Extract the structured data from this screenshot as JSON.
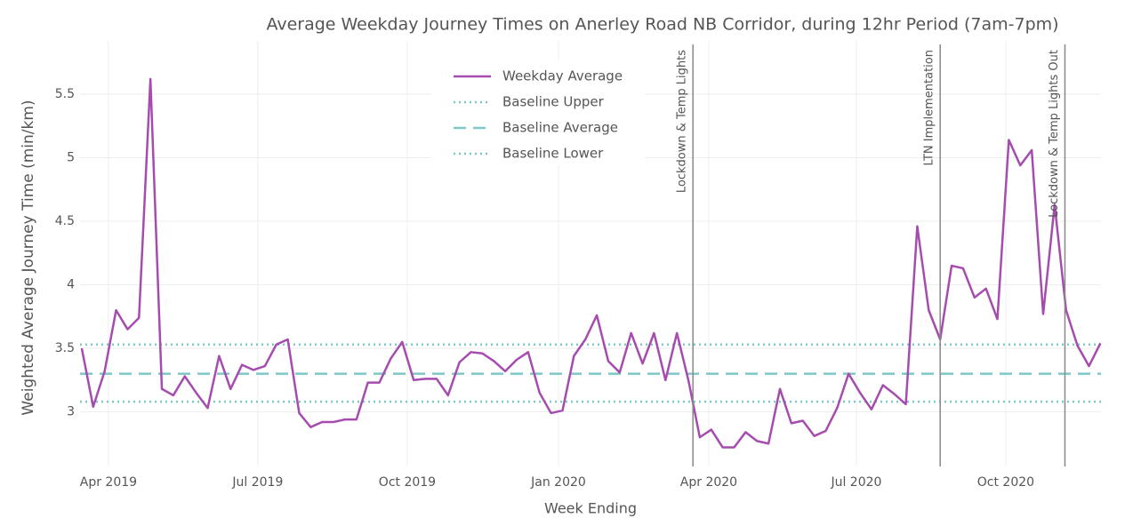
{
  "chart_data": {
    "type": "line",
    "title": "Average Weekday Journey Times on Anerley Road NB Corridor, during 12hr Period (7am-7pm)",
    "x_label": "Week Ending",
    "y_label": "Weighted Average Journey Time (min/km)",
    "series": [
      {
        "name": "Weekday Average",
        "color": "#a64caf",
        "values": [
          3.5,
          3.04,
          3.32,
          3.8,
          3.65,
          3.74,
          5.62,
          3.18,
          3.13,
          3.28,
          3.15,
          3.03,
          3.44,
          3.18,
          3.37,
          3.33,
          3.36,
          3.53,
          3.57,
          2.99,
          2.88,
          2.92,
          2.92,
          2.94,
          2.94,
          3.23,
          3.23,
          3.42,
          3.55,
          3.25,
          3.26,
          3.26,
          3.13,
          3.39,
          3.47,
          3.46,
          3.4,
          3.32,
          3.41,
          3.47,
          3.15,
          2.99,
          3.01,
          3.44,
          3.57,
          3.76,
          3.4,
          3.31,
          3.62,
          3.38,
          3.62,
          3.25,
          3.62,
          3.25,
          2.8,
          2.86,
          2.72,
          2.72,
          2.84,
          2.77,
          2.75,
          3.18,
          2.91,
          2.93,
          2.81,
          2.85,
          3.03,
          3.3,
          3.15,
          3.02,
          3.21,
          3.14,
          3.06,
          4.46,
          3.8,
          3.57,
          4.15,
          4.13,
          3.9,
          3.97,
          3.73,
          5.14,
          4.94,
          5.06,
          3.77,
          4.63,
          3.8,
          3.52,
          3.36,
          3.54
        ]
      }
    ],
    "baselines": [
      {
        "name": "Baseline Upper",
        "value": 3.53,
        "color": "#7fc6c6",
        "dash": "dot"
      },
      {
        "name": "Baseline Average",
        "value": 3.3,
        "color": "#7fc6c6",
        "dash": "dash"
      },
      {
        "name": "Baseline Lower",
        "value": 3.08,
        "color": "#7fc6c6",
        "dash": "dot"
      }
    ],
    "annotations": [
      {
        "text": "Lockdown & Temp Lights",
        "x": 53.4
      },
      {
        "text": "LTN Implementation",
        "x": 75.0
      },
      {
        "text": "Lockdown & Temp Lights Out",
        "x": 85.9
      }
    ],
    "xlim": [
      -0.15,
      89.05
    ],
    "xticks": [
      {
        "value": 2.33,
        "label": "Apr 2019"
      },
      {
        "value": 15.38,
        "label": "Jul 2019"
      },
      {
        "value": 28.44,
        "label": "Oct 2019"
      },
      {
        "value": 41.65,
        "label": "Jan 2020"
      },
      {
        "value": 54.78,
        "label": "Apr 2020"
      },
      {
        "value": 67.68,
        "label": "Jul 2020"
      },
      {
        "value": 80.73,
        "label": "Oct 2020"
      }
    ],
    "ylim": [
      2.57,
      5.92
    ],
    "yticks": [
      3,
      3.5,
      4,
      4.5,
      5,
      5.5
    ],
    "grid": true
  }
}
